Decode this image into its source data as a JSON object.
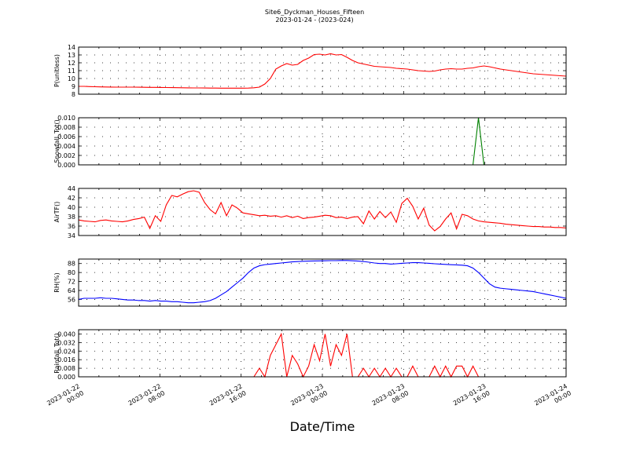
{
  "figure": {
    "title": "Site6_Dyckman_Houses_Fifteen",
    "subtitle": "2023-01-24 - (2023-024)",
    "xlabel": "Date/Time"
  },
  "chart_data": [
    {
      "type": "line",
      "ylabel": "P(unitless)",
      "ylim": [
        8,
        14
      ],
      "yticks": [
        "8",
        "9",
        "10",
        "11",
        "12",
        "13",
        "14"
      ],
      "grid": true,
      "color": "#ff0000",
      "series": [
        {
          "values": [
            9.0,
            9.0,
            8.97,
            8.95,
            8.93,
            8.92,
            8.91,
            8.9,
            8.9,
            8.9,
            8.9,
            8.89,
            8.88,
            8.87,
            8.87,
            8.86,
            8.85,
            8.84,
            8.83,
            8.82,
            8.81,
            8.8,
            8.8,
            8.79,
            8.78,
            8.78,
            8.77,
            8.77,
            8.77,
            8.77,
            8.77,
            8.78,
            8.82,
            8.9,
            9.3,
            10.0,
            11.2,
            11.6,
            11.9,
            11.7,
            11.8,
            12.3,
            12.6,
            13.05,
            13.1,
            13.0,
            13.15,
            13.0,
            13.05,
            12.7,
            12.3,
            12.0,
            11.85,
            11.7,
            11.55,
            11.5,
            11.45,
            11.4,
            11.3,
            11.25,
            11.2,
            11.1,
            11.0,
            10.95,
            10.9,
            10.95,
            11.1,
            11.2,
            11.25,
            11.2,
            11.2,
            11.3,
            11.35,
            11.5,
            11.6,
            11.5,
            11.35,
            11.2,
            11.1,
            11.0,
            10.9,
            10.8,
            10.7,
            10.6,
            10.55,
            10.5,
            10.45,
            10.4,
            10.35,
            10.3
          ]
        }
      ]
    },
    {
      "type": "line",
      "ylabel": "Snowfall_Tot()",
      "ylim": [
        0,
        0.01
      ],
      "yticks": [
        "0.000",
        "0.002",
        "0.004",
        "0.006",
        "0.008",
        "0.010"
      ],
      "grid": true,
      "color": "#008000",
      "series": [
        {
          "values": [
            0,
            0,
            0,
            0,
            0,
            0,
            0,
            0,
            0,
            0,
            0,
            0,
            0,
            0,
            0,
            0,
            0,
            0,
            0,
            0,
            0,
            0,
            0,
            0,
            0,
            0,
            0,
            0,
            0,
            0,
            0,
            0,
            0,
            0,
            0,
            0,
            0,
            0,
            0,
            0,
            0,
            0,
            0,
            0,
            0,
            0,
            0,
            0,
            0,
            0,
            0,
            0,
            0,
            0,
            0,
            0,
            0,
            0,
            0,
            0,
            0,
            0,
            0,
            0,
            0,
            0,
            0,
            0,
            0,
            0,
            0,
            0,
            0,
            0.01,
            0,
            0,
            0,
            0,
            0,
            0,
            0,
            0,
            0,
            0,
            0,
            0,
            0,
            0,
            0,
            0
          ]
        }
      ]
    },
    {
      "type": "line",
      "ylabel": "AirTF()",
      "ylim": [
        34,
        44
      ],
      "yticks": [
        "34",
        "36",
        "38",
        "40",
        "42",
        "44"
      ],
      "grid": true,
      "color": "#ff0000",
      "series": [
        {
          "values": [
            37.3,
            37.1,
            37.0,
            36.9,
            37.2,
            37.3,
            37.1,
            37.0,
            36.9,
            37.1,
            37.4,
            37.6,
            37.9,
            35.5,
            38.2,
            37.0,
            40.5,
            42.5,
            42.2,
            42.8,
            43.3,
            43.5,
            43.2,
            41.0,
            39.5,
            38.6,
            41.0,
            38.2,
            40.5,
            39.8,
            38.8,
            38.6,
            38.4,
            38.2,
            38.3,
            38.1,
            38.2,
            37.9,
            38.2,
            37.8,
            38.1,
            37.6,
            37.8,
            37.9,
            38.1,
            38.3,
            38.2,
            37.8,
            37.9,
            37.6,
            37.9,
            38.0,
            36.5,
            39.2,
            37.5,
            39.1,
            37.8,
            39.0,
            36.8,
            40.8,
            41.9,
            40.2,
            37.5,
            39.8,
            36.2,
            35.0,
            35.9,
            37.5,
            38.8,
            35.4,
            38.5,
            38.2,
            37.5,
            37.1,
            36.9,
            36.8,
            36.7,
            36.6,
            36.4,
            36.3,
            36.2,
            36.1,
            36.0,
            35.9,
            35.9,
            35.8,
            35.8,
            35.7,
            35.7,
            35.6
          ]
        }
      ]
    },
    {
      "type": "line",
      "ylabel": "RH(%)",
      "ylim": [
        50,
        92
      ],
      "yticks": [
        "56",
        "64",
        "72",
        "80",
        "88"
      ],
      "grid": true,
      "color": "#0000ff",
      "series": [
        {
          "values": [
            56,
            57,
            57,
            57,
            57.5,
            57,
            57,
            56.5,
            56,
            55.5,
            55.5,
            55,
            55,
            54.5,
            55,
            54.5,
            54.5,
            54,
            54,
            53.5,
            53,
            53,
            53.5,
            54,
            55,
            57,
            60,
            63,
            67,
            71,
            75,
            80,
            84,
            86,
            87,
            87.5,
            88,
            88.5,
            89,
            89.5,
            89.8,
            90,
            90.2,
            90.3,
            90.4,
            90.5,
            90.6,
            90.6,
            90.7,
            90.7,
            90.5,
            90.2,
            89.8,
            89.2,
            88.5,
            88,
            88,
            87.5,
            87.8,
            88.2,
            88.5,
            88.8,
            88.8,
            88.5,
            88.2,
            87.8,
            87.5,
            87.2,
            87,
            86.8,
            86.5,
            86,
            84,
            80,
            75,
            70,
            67,
            66,
            65.5,
            65,
            64.5,
            64,
            63.5,
            63,
            62,
            61,
            60,
            59,
            58,
            57
          ]
        }
      ]
    },
    {
      "type": "line",
      "ylabel": "Rainfall_Tot()",
      "ylim": [
        0,
        0.044
      ],
      "yticks": [
        "0.000",
        "0.008",
        "0.016",
        "0.024",
        "0.032",
        "0.040"
      ],
      "grid": true,
      "color": "#ff0000",
      "series": [
        {
          "values": [
            0,
            0,
            0,
            0,
            0,
            0,
            0,
            0,
            0,
            0,
            0,
            0,
            0,
            0,
            0,
            0,
            0,
            0,
            0,
            0,
            0,
            0,
            0,
            0,
            0,
            0,
            0,
            0,
            0,
            0,
            0,
            0,
            0,
            0.008,
            0,
            0.02,
            0.03,
            0.04,
            0,
            0.02,
            0.012,
            0,
            0.01,
            0.03,
            0.015,
            0.04,
            0.01,
            0.03,
            0.02,
            0.04,
            0,
            0,
            0.008,
            0,
            0.008,
            0,
            0.008,
            0,
            0.008,
            0,
            0,
            0.01,
            0,
            0,
            0,
            0.01,
            0,
            0.01,
            0,
            0.01,
            0.01,
            0,
            0.01,
            0,
            0,
            0,
            0,
            0,
            0,
            0,
            0,
            0,
            0,
            0,
            0,
            0,
            0,
            0,
            0,
            0
          ]
        }
      ]
    }
  ],
  "x_axis": {
    "tick_labels": [
      [
        "2023-01-22",
        "00:00"
      ],
      [
        "2023-01-22",
        "08:00"
      ],
      [
        "2023-01-22",
        "16:00"
      ],
      [
        "2023-01-23",
        "00:00"
      ],
      [
        "2023-01-23",
        "08:00"
      ],
      [
        "2023-01-23",
        "16:00"
      ],
      [
        "2023-01-24",
        "00:00"
      ]
    ]
  }
}
